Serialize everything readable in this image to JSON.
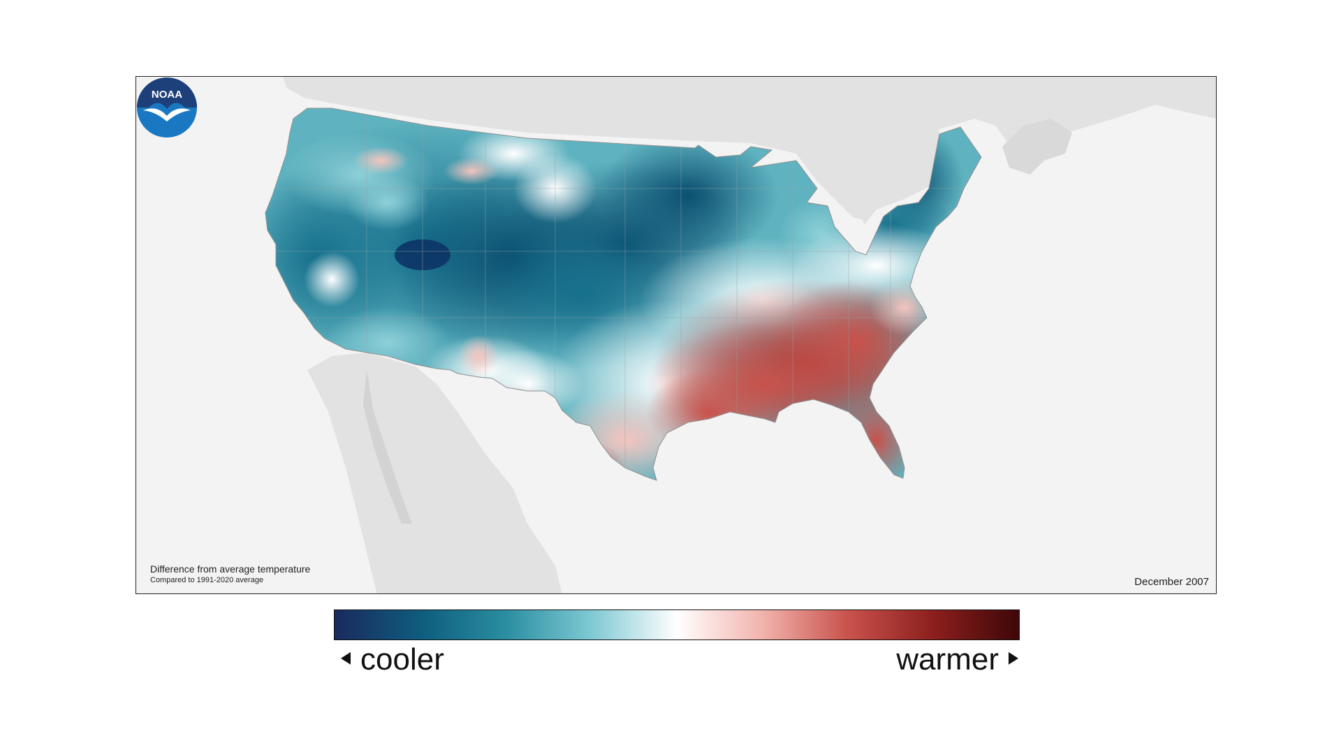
{
  "map": {
    "caption_title": "Difference from average temperature",
    "caption_subtitle": "Compared to 1991-2020 average",
    "date": "December 2007",
    "logo_text": "NOAA",
    "variable": "temperature anomaly",
    "pattern": {
      "cooler_regions": [
        "West",
        "Northern Plains",
        "Upper Midwest",
        "Central Plains",
        "New England"
      ],
      "warmer_regions": [
        "Southeast",
        "Gulf Coast",
        "Lower Mississippi Valley",
        "South Texas",
        "Florida"
      ]
    }
  },
  "colorbar": {
    "left_label": "cooler",
    "right_label": "warmer",
    "colors": [
      "#1a2a5e",
      "#0e5c7e",
      "#2a8ea0",
      "#7fc9d3",
      "#ffffff",
      "#f2b3ad",
      "#c9524c",
      "#8c1f1d",
      "#3e0708"
    ]
  },
  "colors": {
    "cool_strong": "#0b5e7c",
    "cool_mid": "#2f93a6",
    "cool_light": "#a8dde3",
    "neutral": "#ffffff",
    "warm_light": "#f3c1bb",
    "warm_mid": "#d4665e",
    "warm_strong": "#b4443e",
    "land_background": "#e2e2e2",
    "water_background": "#f3f3f3"
  }
}
